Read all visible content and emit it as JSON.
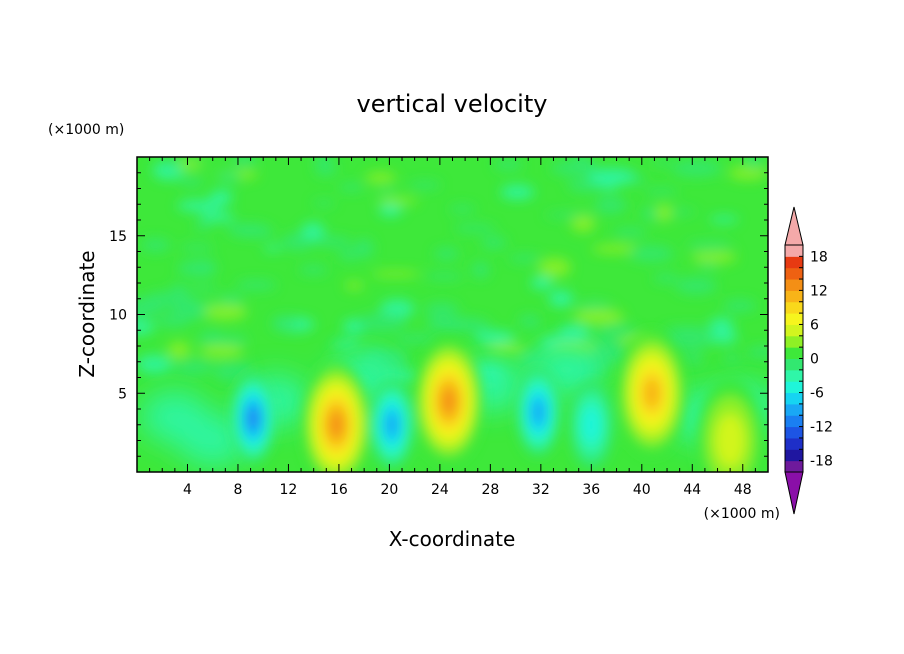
{
  "chart_data": {
    "type": "heatmap",
    "title": "vertical velocity",
    "xlabel": "X-coordinate",
    "ylabel": "Z-coordinate",
    "x_unit": "(×1000 m)",
    "y_unit": "(×1000 m)",
    "xlim": [
      0,
      50
    ],
    "ylim": [
      0,
      20
    ],
    "x_ticks": [
      4,
      8,
      12,
      16,
      20,
      24,
      28,
      32,
      36,
      40,
      44,
      48
    ],
    "y_ticks": [
      5,
      10,
      15
    ],
    "colorbar": {
      "levels": [
        -20,
        -18,
        -16,
        -14,
        -12,
        -10,
        -8,
        -6,
        -4,
        -2,
        0,
        2,
        4,
        6,
        8,
        10,
        12,
        14,
        16,
        18,
        20
      ],
      "tick_labels": [
        18,
        12,
        6,
        0,
        -6,
        -12,
        -18
      ],
      "colors": [
        "#6e1a9c",
        "#1f16a0",
        "#1e2fc8",
        "#1d55e4",
        "#1a7ff2",
        "#19a8f5",
        "#16d4f2",
        "#1ff5d9",
        "#2ff6a8",
        "#32e870",
        "#3ee83a",
        "#8ff025",
        "#d2f51f",
        "#f6f51e",
        "#f9d81b",
        "#f8b418",
        "#f48f15",
        "#ee6112",
        "#e73a12",
        "#f4a9a9"
      ],
      "extend_low_color": "#8a0fa8",
      "extend_high_color": "#f4a9a9"
    },
    "features": [
      {
        "x": 9.2,
        "z": 3.4,
        "value": -11
      },
      {
        "x": 15.8,
        "z": 3.0,
        "value": 13
      },
      {
        "x": 20.2,
        "z": 3.0,
        "value": -10
      },
      {
        "x": 24.7,
        "z": 4.5,
        "value": 14
      },
      {
        "x": 31.8,
        "z": 3.8,
        "value": -10
      },
      {
        "x": 36.0,
        "z": 3.0,
        "value": -6
      },
      {
        "x": 40.8,
        "z": 5.0,
        "value": 11
      },
      {
        "x": 47.0,
        "z": 2.0,
        "value": 6
      }
    ]
  }
}
